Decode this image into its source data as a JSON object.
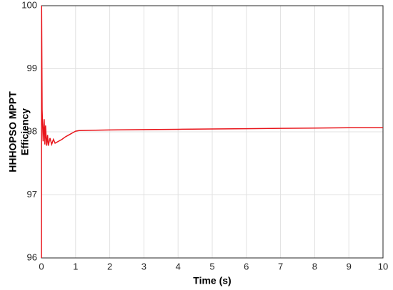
{
  "chart_data": {
    "type": "line",
    "xlabel": "Time (s)",
    "ylabel": [
      "HHHOPSO MPPT",
      "Efficiency"
    ],
    "x": [
      0,
      0.005,
      0.02,
      0.05,
      0.08,
      0.1,
      0.12,
      0.15,
      0.18,
      0.2,
      0.25,
      0.3,
      0.35,
      0.4,
      0.5,
      0.6,
      0.7,
      0.8,
      0.9,
      1.0,
      1.1,
      2,
      3,
      4,
      5,
      6,
      7,
      8,
      9,
      10
    ],
    "series": [
      {
        "color": "#e8141a",
        "values": [
          96,
          100,
          98.35,
          97.85,
          98.2,
          97.8,
          98.1,
          97.78,
          97.95,
          97.78,
          97.9,
          97.8,
          97.88,
          97.82,
          97.85,
          97.88,
          97.92,
          97.95,
          97.98,
          98.01,
          98.02,
          98.03,
          98.035,
          98.04,
          98.045,
          98.05,
          98.055,
          98.06,
          98.065,
          98.065
        ]
      }
    ],
    "xlim": [
      0,
      10
    ],
    "xticks": [
      0,
      1,
      2,
      3,
      4,
      5,
      6,
      7,
      8,
      9,
      10
    ],
    "ylim": [
      96,
      100
    ],
    "yticks": [
      96,
      97,
      98,
      99,
      100
    ],
    "grid": true
  }
}
